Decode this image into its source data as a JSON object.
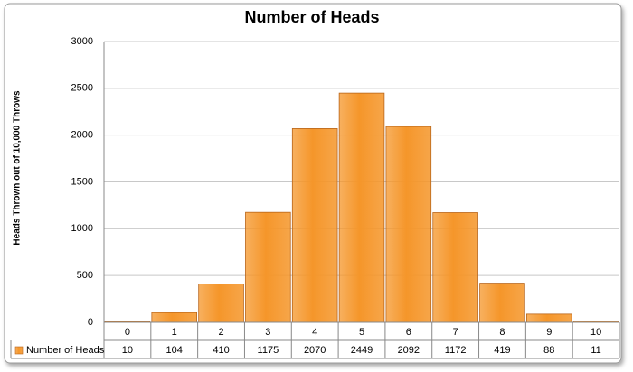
{
  "chart_data": {
    "type": "bar",
    "title": "Number of Heads",
    "y_label": "Heads Thrown out of 10,000 Throws",
    "categories": [
      "0",
      "1",
      "2",
      "3",
      "4",
      "5",
      "6",
      "7",
      "8",
      "9",
      "10"
    ],
    "series": [
      {
        "name": "Number of Heads",
        "color": "#F5962A",
        "values": [
          10,
          104,
          410,
          1175,
          2070,
          2449,
          2092,
          1172,
          419,
          88,
          11
        ]
      }
    ],
    "ylim": [
      0,
      3000
    ],
    "yticks": [
      0,
      500,
      1000,
      1500,
      2000,
      2500,
      3000
    ],
    "grid": true,
    "data_table": true
  }
}
